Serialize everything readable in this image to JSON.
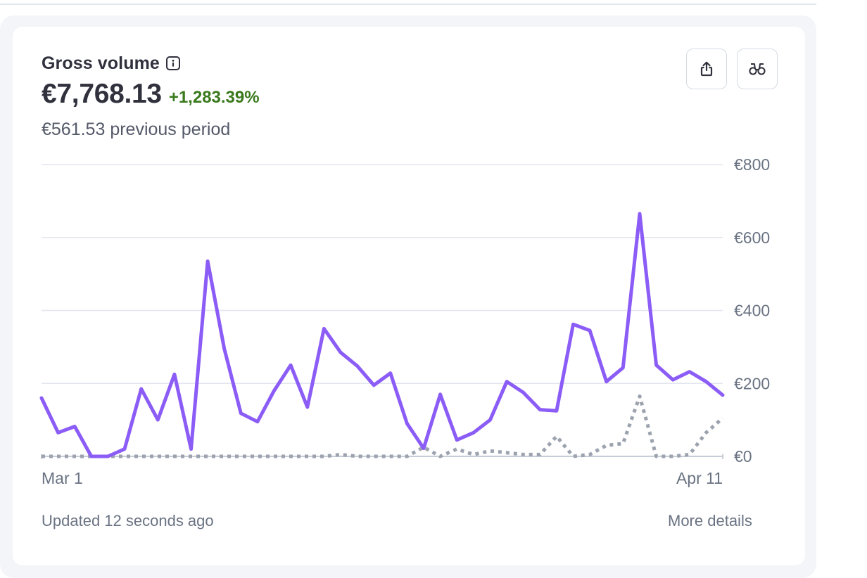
{
  "card": {
    "title": "Gross volume",
    "info_icon": "info-icon",
    "value": "€7,768.13",
    "change": "+1,283.39%",
    "previous": "€561.53 previous period",
    "export_icon": "share-export-icon",
    "explore_icon": "binoculars-icon",
    "updated": "Updated 12 seconds ago",
    "more_details": "More details"
  },
  "colors": {
    "current": "#8b5cf6",
    "previous": "#9ca3af",
    "positive_change": "#3a7a1d",
    "grid": "#e3e6ef"
  },
  "chart_data": {
    "type": "line",
    "x_start_label": "Mar 1",
    "x_end_label": "Apr 11",
    "ylim": [
      0,
      800
    ],
    "y_ticks": [
      0,
      200,
      400,
      600,
      800
    ],
    "y_tick_labels": [
      "€0",
      "€200",
      "€400",
      "€600",
      "€800"
    ],
    "grid": true,
    "series": [
      {
        "style": "solid",
        "values": [
          160,
          65,
          82,
          0,
          0,
          20,
          185,
          100,
          225,
          20,
          535,
          295,
          118,
          95,
          180,
          250,
          135,
          350,
          285,
          248,
          195,
          228,
          90,
          22,
          170,
          45,
          65,
          100,
          205,
          175,
          128,
          125,
          362,
          345,
          205,
          243,
          665,
          250,
          210,
          232,
          205,
          168
        ]
      },
      {
        "style": "dotted",
        "values": [
          0,
          0,
          0,
          0,
          0,
          0,
          0,
          0,
          0,
          0,
          0,
          0,
          0,
          0,
          0,
          0,
          0,
          0,
          5,
          0,
          0,
          0,
          0,
          25,
          0,
          20,
          5,
          15,
          10,
          5,
          5,
          55,
          0,
          5,
          30,
          35,
          165,
          0,
          0,
          5,
          65,
          105
        ]
      }
    ]
  }
}
